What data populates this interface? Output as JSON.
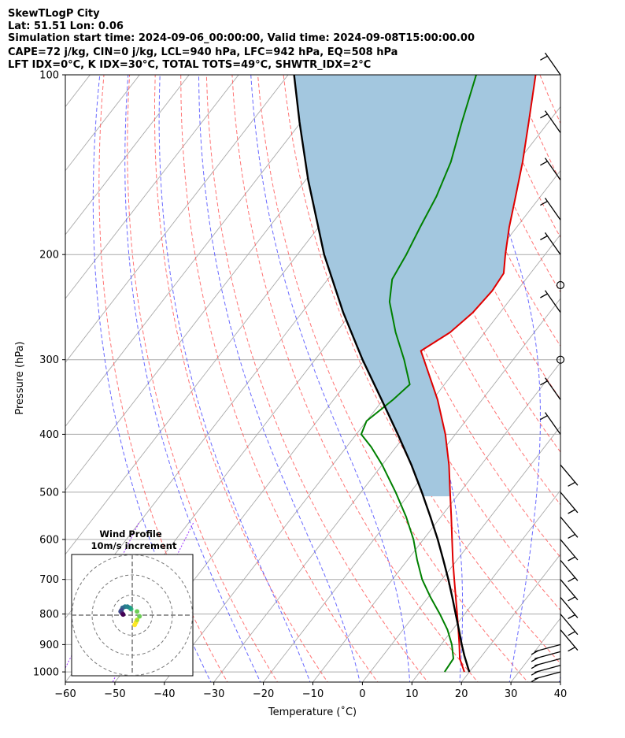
{
  "header": {
    "line1": "SkewTLogP City",
    "line2": "Lat: 51.51   Lon: 0.06",
    "line3": "Simulation start time: 2024-09-06_00:00:00, Valid time: 2024-09-08T15:00:00.00",
    "line4": "CAPE=72 j/kg, CIN=0 j/kg, LCL=940 hPa, LFC=942 hPa, EQ=508 hPa",
    "line5": "LFT IDX=0°C, K IDX=30°C, TOTAL TOTS=49°C, SHWTR_IDX=2°C"
  },
  "colors": {
    "temperature": "#e00000",
    "dewpoint": "#008000",
    "parcel": "#000000",
    "cape_fill": "#a3c7df",
    "isotherm_grid": "#aaaaaa",
    "dry_adiabat": "#ff5b5b",
    "moist_adiabat": "#4d4dff",
    "mixing_ratio": "#9b30ff",
    "hodo_ring": "#777777"
  },
  "chart_data": {
    "type": "skewt-logp",
    "title": "SkewTLogP City",
    "xlabel": "Temperature (˚C)",
    "ylabel": "Pressure (hPa)",
    "xlim": [
      -60,
      40
    ],
    "ylim": [
      1040,
      100
    ],
    "x_ticks": [
      "−60",
      "−50",
      "−40",
      "−30",
      "−20",
      "−10",
      "0",
      "10",
      "20",
      "30",
      "40"
    ],
    "x_tick_values": [
      -60,
      -50,
      -40,
      -30,
      -20,
      -10,
      0,
      10,
      20,
      30,
      40
    ],
    "y_ticks": [
      "100",
      "200",
      "300",
      "400",
      "500",
      "600",
      "700",
      "800",
      "900",
      "1000"
    ],
    "y_tick_values": [
      100,
      200,
      300,
      400,
      500,
      600,
      700,
      800,
      900,
      1000
    ],
    "grid": true,
    "series": [
      {
        "name": "temperature",
        "points": [
          [
            1000,
            19
          ],
          [
            950,
            16
          ],
          [
            900,
            13.7
          ],
          [
            850,
            11.2
          ],
          [
            800,
            8.5
          ],
          [
            750,
            5.6
          ],
          [
            700,
            2.5
          ],
          [
            650,
            -0.8
          ],
          [
            600,
            -4.2
          ],
          [
            550,
            -7.9
          ],
          [
            500,
            -12
          ],
          [
            450,
            -16.5
          ],
          [
            400,
            -22
          ],
          [
            350,
            -29
          ],
          [
            300,
            -38
          ],
          [
            290,
            -40
          ],
          [
            270,
            -37
          ],
          [
            250,
            -35.5
          ],
          [
            230,
            -35
          ],
          [
            215,
            -35.4
          ],
          [
            200,
            -38
          ],
          [
            180,
            -41.5
          ],
          [
            160,
            -45
          ],
          [
            140,
            -49
          ],
          [
            120,
            -54
          ],
          [
            100,
            -60
          ]
        ]
      },
      {
        "name": "dewpoint",
        "points": [
          [
            1000,
            15
          ],
          [
            950,
            14.7
          ],
          [
            900,
            12.2
          ],
          [
            850,
            9
          ],
          [
            800,
            5
          ],
          [
            750,
            0.5
          ],
          [
            700,
            -4
          ],
          [
            650,
            -8
          ],
          [
            600,
            -12
          ],
          [
            550,
            -17
          ],
          [
            500,
            -23
          ],
          [
            450,
            -30
          ],
          [
            420,
            -35
          ],
          [
            400,
            -39
          ],
          [
            380,
            -40
          ],
          [
            350,
            -38
          ],
          [
            330,
            -37
          ],
          [
            300,
            -42
          ],
          [
            270,
            -48
          ],
          [
            240,
            -54
          ],
          [
            220,
            -57
          ],
          [
            200,
            -58
          ],
          [
            180,
            -59.5
          ],
          [
            160,
            -61
          ],
          [
            140,
            -63.5
          ],
          [
            120,
            -67.5
          ],
          [
            100,
            -72
          ]
        ]
      },
      {
        "name": "parcel",
        "points": [
          [
            1000,
            20
          ],
          [
            940,
            16.5
          ],
          [
            900,
            14.2
          ],
          [
            850,
            11.3
          ],
          [
            800,
            8.2
          ],
          [
            750,
            4.9
          ],
          [
            700,
            1.3
          ],
          [
            650,
            -2.7
          ],
          [
            600,
            -7.1
          ],
          [
            550,
            -12.1
          ],
          [
            500,
            -17.7
          ],
          [
            450,
            -24.1
          ],
          [
            400,
            -31.6
          ],
          [
            350,
            -40.3
          ],
          [
            300,
            -50.4
          ],
          [
            250,
            -61.7
          ],
          [
            200,
            -74.6
          ],
          [
            150,
            -89.5
          ],
          [
            120,
            -100.3
          ],
          [
            100,
            -108.8
          ]
        ]
      }
    ],
    "cape_region": {
      "from_hpa": 508,
      "to_hpa": 100
    },
    "wind_barbs_hpa": [
      1000,
      975,
      950,
      925,
      900,
      850,
      800,
      750,
      700,
      650,
      600,
      550,
      500,
      450,
      400,
      350,
      300,
      250,
      225,
      200,
      175,
      150,
      125,
      100
    ],
    "hodograph": {
      "title": "Wind Profile",
      "subtitle": "10m/s increment",
      "rings_ms": [
        10,
        20,
        30
      ],
      "points": [
        [
          1,
          -4
        ],
        [
          1.5,
          -3
        ],
        [
          2,
          -2
        ],
        [
          3,
          -0.5
        ],
        [
          2,
          1.5
        ],
        [
          -0.5,
          2.5
        ],
        [
          -1,
          3
        ],
        [
          -2,
          3.5
        ],
        [
          -3,
          3.5
        ],
        [
          -4,
          3
        ],
        [
          -4.5,
          2
        ],
        [
          -4.8,
          1.5
        ],
        [
          -4.2,
          0.8
        ],
        [
          -3.8,
          0.3
        ]
      ]
    }
  }
}
